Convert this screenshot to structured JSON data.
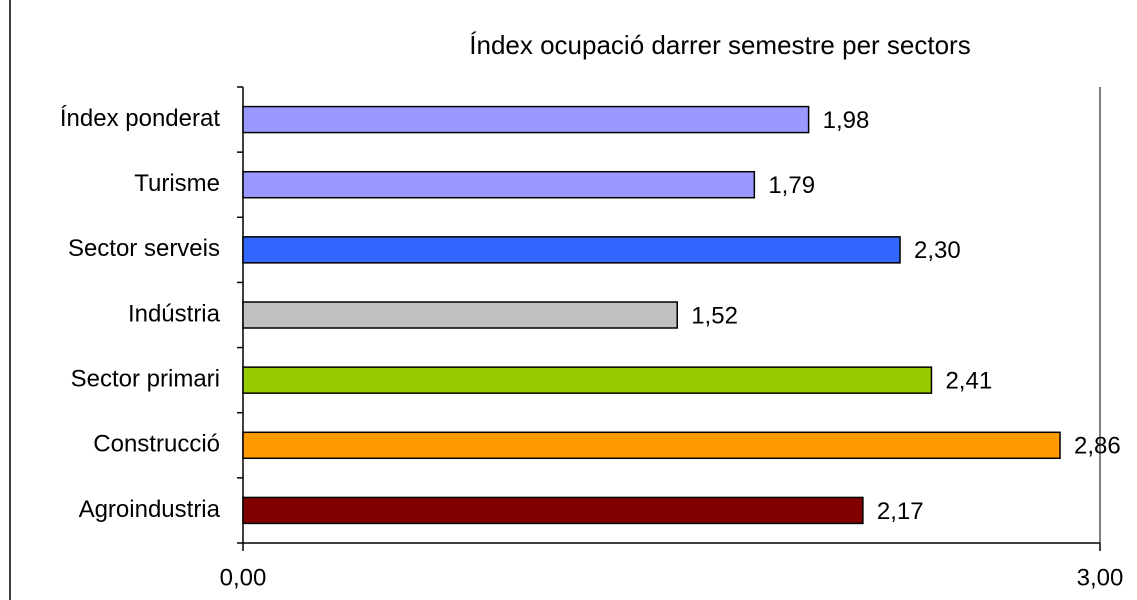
{
  "chart_data": {
    "type": "bar",
    "orientation": "horizontal",
    "title": "Índex ocupació darrer semestre per sectors",
    "categories": [
      "Índex ponderat",
      "Turisme",
      "Sector serveis",
      "Indústria",
      "Sector primari",
      "Construcció",
      "Agroindustria"
    ],
    "values": [
      1.98,
      1.79,
      2.3,
      1.52,
      2.41,
      2.86,
      2.17
    ],
    "value_labels": [
      "1,98",
      "1,79",
      "2,30",
      "1,52",
      "2,41",
      "2,86",
      "2,17"
    ],
    "colors": [
      "#9999ff",
      "#9999ff",
      "#3366ff",
      "#c0c0c0",
      "#99cc00",
      "#ff9900",
      "#800000"
    ],
    "xlim": [
      0,
      3
    ],
    "xticks": [
      {
        "value": 0,
        "label": "0,00"
      },
      {
        "value": 3,
        "label": "3,00"
      }
    ],
    "grid": false
  }
}
